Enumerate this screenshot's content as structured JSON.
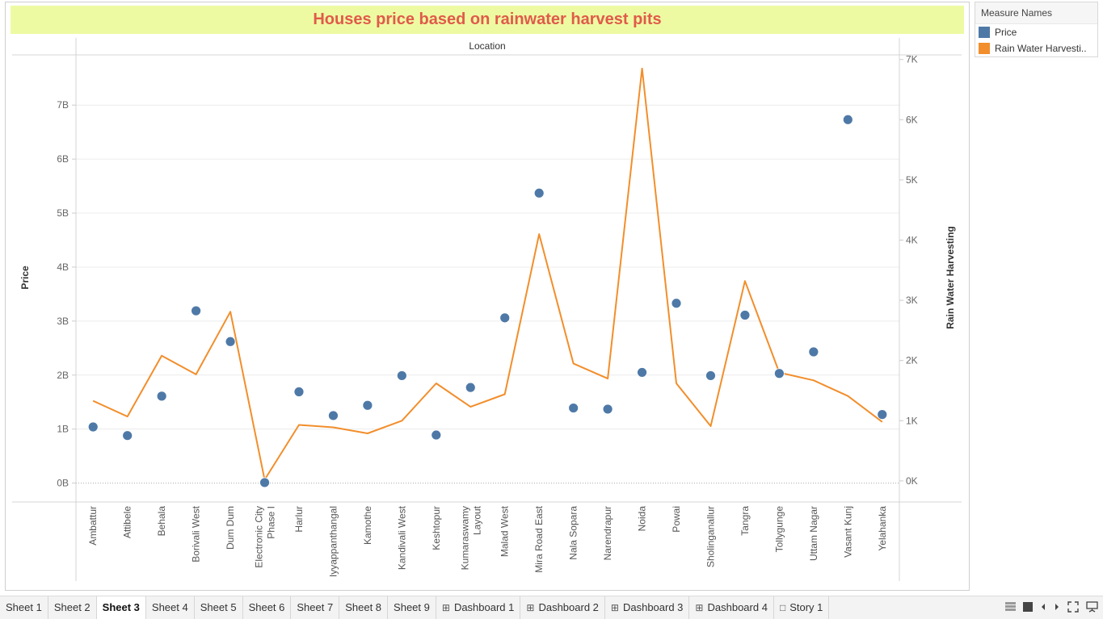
{
  "title": "Houses price based on rainwater harvest pits",
  "legend": {
    "title": "Measure Names",
    "items": [
      {
        "label": "Price",
        "color": "#4e79a7"
      },
      {
        "label": "Rain Water Harvesti..",
        "color": "#f28e2b"
      }
    ]
  },
  "tabs": [
    {
      "label": "Sheet 1",
      "icon": ""
    },
    {
      "label": "Sheet 2",
      "icon": ""
    },
    {
      "label": "Sheet 3",
      "icon": "",
      "active": true
    },
    {
      "label": "Sheet 4",
      "icon": ""
    },
    {
      "label": "Sheet 5",
      "icon": ""
    },
    {
      "label": "Sheet 6",
      "icon": ""
    },
    {
      "label": "Sheet 7",
      "icon": ""
    },
    {
      "label": "Sheet 8",
      "icon": ""
    },
    {
      "label": "Sheet 9",
      "icon": ""
    },
    {
      "label": "Dashboard 1",
      "icon": "dashboard-icon"
    },
    {
      "label": "Dashboard 2",
      "icon": "dashboard-icon"
    },
    {
      "label": "Dashboard 3",
      "icon": "dashboard-icon"
    },
    {
      "label": "Dashboard 4",
      "icon": "dashboard-icon"
    },
    {
      "label": "Story 1",
      "icon": "story-icon"
    }
  ],
  "controls": [
    "grid-view-icon",
    "filmstrip-view-icon",
    "previous-sheet-icon",
    "next-sheet-icon",
    "fit-screen-icon",
    "presentation-mode-icon"
  ],
  "chart_data": {
    "type": "scatter",
    "header": "Location",
    "ylabel": "Price",
    "y2label": "Rain Water Harvesting",
    "ylim": [
      -0.35,
      7.9
    ],
    "y2lim": [
      -350,
      7050
    ],
    "yticks": [
      "0B",
      "1B",
      "2B",
      "3B",
      "4B",
      "5B",
      "6B",
      "7B"
    ],
    "y2ticks": [
      "0K",
      "1K",
      "2K",
      "3K",
      "4K",
      "5K",
      "6K",
      "7K"
    ],
    "categories": [
      "Ambattur",
      "Attibele",
      "Behala",
      "Borivali West",
      "Dum Dum",
      "Electronic City Phase I",
      "Harlur",
      "Iyyappanthangal",
      "Kamothe",
      "Kandivali West",
      "Keshtopur",
      "Kumaraswamy Layout",
      "Malad West",
      "Mira Road East",
      "Nala Sopara",
      "Narendrapur",
      "Noida",
      "Powai",
      "Sholinganallur",
      "Tangra",
      "Tollygunge",
      "Uttam Nagar",
      "Vasant Kunj",
      "Yelahanka"
    ],
    "category_lines": [
      [
        "Ambattur"
      ],
      [
        "Attibele"
      ],
      [
        "Behala"
      ],
      [
        "Borivali West"
      ],
      [
        "Dum Dum"
      ],
      [
        "Electronic City",
        "Phase I"
      ],
      [
        "Harlur"
      ],
      [
        "Iyyappanthangal"
      ],
      [
        "Kamothe"
      ],
      [
        "Kandivali West"
      ],
      [
        "Keshtopur"
      ],
      [
        "Kumaraswamy",
        "Layout"
      ],
      [
        "Malad West"
      ],
      [
        "Mira Road East"
      ],
      [
        "Nala Sopara"
      ],
      [
        "Narendrapur"
      ],
      [
        "Noida"
      ],
      [
        "Powai"
      ],
      [
        "Sholinganallur"
      ],
      [
        "Tangra"
      ],
      [
        "Tollygunge"
      ],
      [
        "Uttam Nagar"
      ],
      [
        "Vasant Kunj"
      ],
      [
        "Yelahanka"
      ]
    ],
    "series": [
      {
        "name": "Price",
        "mark": "circle",
        "axis": "left",
        "unit": "B",
        "color": "#4e79a7",
        "values": [
          1.04,
          0.88,
          1.61,
          3.19,
          2.62,
          0.01,
          1.69,
          1.25,
          1.44,
          1.99,
          0.89,
          1.77,
          3.06,
          5.37,
          1.39,
          1.37,
          2.05,
          3.33,
          1.99,
          3.11,
          2.03,
          2.43,
          6.73,
          1.27
        ]
      },
      {
        "name": "Rain Water Harvesting",
        "mark": "line",
        "axis": "right",
        "unit": "K",
        "color": "#f28e2b",
        "values": [
          1330,
          1070,
          2080,
          1770,
          2810,
          20,
          930,
          890,
          790,
          1000,
          1620,
          1230,
          1440,
          4100,
          1950,
          1700,
          6850,
          1620,
          910,
          3320,
          1800,
          1670,
          1410,
          980
        ]
      }
    ],
    "grid": true,
    "legend_position": "right"
  }
}
